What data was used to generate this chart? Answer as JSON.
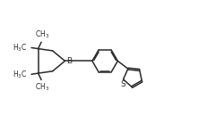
{
  "bg_color": "#ffffff",
  "line_color": "#2a2a2a",
  "text_color": "#2a2a2a",
  "line_width": 1.1,
  "font_size": 6.0,
  "fig_width": 2.32,
  "fig_height": 1.39,
  "dpi": 100
}
